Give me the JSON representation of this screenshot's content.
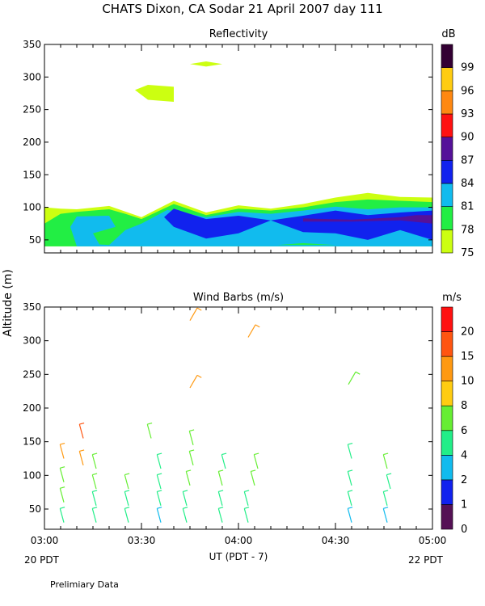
{
  "title": "CHATS Dixon, CA  Sodar  21 April 2007  day 111",
  "ylabel": "Altitude (m)",
  "xlabel": "UT  (PDT - 7)",
  "x_left_note": "20 PDT",
  "x_right_note": "22 PDT",
  "footnote": "Prelimiary Data",
  "colors": {
    "c75": "#ccff11",
    "c78": "#22ee44",
    "c81": "#11bbee",
    "c84": "#1122ee",
    "c87": "#551199",
    "c90": "#ff1111",
    "c93": "#ff8811",
    "c96": "#ffcc11",
    "c99": "#330033"
  },
  "chart_data": [
    {
      "type": "heatmap",
      "title": "Reflectivity",
      "colorbar_unit": "dB",
      "x": [
        "03:00",
        "03:30",
        "04:00",
        "04:30",
        "05:00"
      ],
      "x_minutes": [
        0,
        30,
        60,
        90,
        120
      ],
      "xlim": [
        0,
        120
      ],
      "ylim": [
        30,
        350
      ],
      "yticks": [
        50,
        100,
        150,
        200,
        250,
        300,
        350
      ],
      "levels": [
        75,
        78,
        81,
        84,
        87,
        90,
        93,
        96,
        99
      ],
      "level_colors": [
        "#ccff11",
        "#22ee44",
        "#11bbee",
        "#1122ee",
        "#551199",
        "#ff1111",
        "#ff8811",
        "#ffcc11",
        "#330033"
      ],
      "regions": [
        {
          "level": 75,
          "points": [
            [
              0,
              40
            ],
            [
              0,
              100
            ],
            [
              5,
              98
            ],
            [
              10,
              97
            ],
            [
              20,
              102
            ],
            [
              30,
              85
            ],
            [
              40,
              110
            ],
            [
              50,
              92
            ],
            [
              60,
              103
            ],
            [
              70,
              98
            ],
            [
              80,
              105
            ],
            [
              90,
              115
            ],
            [
              100,
              122
            ],
            [
              110,
              116
            ],
            [
              120,
              115
            ],
            [
              120,
              40
            ]
          ]
        },
        {
          "level": 78,
          "points": [
            [
              0,
              40
            ],
            [
              0,
              75
            ],
            [
              5,
              90
            ],
            [
              10,
              93
            ],
            [
              20,
              97
            ],
            [
              25,
              90
            ],
            [
              30,
              82
            ],
            [
              40,
              105
            ],
            [
              50,
              88
            ],
            [
              60,
              98
            ],
            [
              70,
              95
            ],
            [
              80,
              100
            ],
            [
              90,
              108
            ],
            [
              100,
              112
            ],
            [
              110,
              110
            ],
            [
              120,
              108
            ],
            [
              120,
              40
            ]
          ]
        },
        {
          "level": 81,
          "points": [
            [
              10,
              40
            ],
            [
              8,
              70
            ],
            [
              10,
              86
            ],
            [
              20,
              87
            ],
            [
              22,
              70
            ],
            [
              15,
              60
            ],
            [
              17,
              43
            ],
            [
              20,
              42
            ],
            [
              25,
              65
            ],
            [
              30,
              75
            ],
            [
              38,
              96
            ],
            [
              50,
              85
            ],
            [
              60,
              93
            ],
            [
              70,
              90
            ],
            [
              80,
              95
            ],
            [
              90,
              101
            ],
            [
              100,
              97
            ],
            [
              110,
              100
            ],
            [
              120,
              100
            ],
            [
              120,
              40
            ]
          ]
        },
        {
          "level": 84,
          "points": [
            [
              37,
              85
            ],
            [
              40,
              98
            ],
            [
              50,
              82
            ],
            [
              60,
              87
            ],
            [
              70,
              80
            ],
            [
              80,
              87
            ],
            [
              90,
              95
            ],
            [
              100,
              88
            ],
            [
              110,
              92
            ],
            [
              120,
              95
            ],
            [
              120,
              50
            ],
            [
              110,
              65
            ],
            [
              100,
              50
            ],
            [
              90,
              60
            ],
            [
              80,
              62
            ],
            [
              70,
              80
            ],
            [
              60,
              60
            ],
            [
              50,
              52
            ],
            [
              40,
              70
            ]
          ]
        },
        {
          "level": 87,
          "points": [
            [
              80,
              83
            ],
            [
              95,
              81
            ],
            [
              110,
              85
            ],
            [
              115,
              88
            ],
            [
              120,
              88
            ],
            [
              120,
              75
            ],
            [
              110,
              80
            ],
            [
              95,
              78
            ],
            [
              80,
              78
            ]
          ]
        },
        {
          "level": 78,
          "points": [
            [
              72,
              42
            ],
            [
              80,
              45
            ],
            [
              90,
              42
            ]
          ]
        },
        {
          "level": 75,
          "points": [
            [
              28,
              280
            ],
            [
              32,
              288
            ],
            [
              40,
              285
            ],
            [
              40,
              262
            ],
            [
              32,
              265
            ]
          ]
        },
        {
          "level": 75,
          "points": [
            [
              45,
              320
            ],
            [
              50,
              324
            ],
            [
              55,
              320
            ],
            [
              50,
              316
            ]
          ]
        }
      ]
    },
    {
      "type": "scatter",
      "title": "Wind Barbs (m/s)",
      "colorbar_unit": "m/s",
      "x": [
        "03:00",
        "03:30",
        "04:00",
        "04:30",
        "05:00"
      ],
      "x_minutes": [
        0,
        30,
        60,
        90,
        120
      ],
      "xlim": [
        0,
        120
      ],
      "ylim": [
        20,
        350
      ],
      "yticks": [
        50,
        100,
        150,
        200,
        250,
        300,
        350
      ],
      "levels": [
        0,
        1,
        2,
        4,
        6,
        8,
        10,
        15,
        20
      ],
      "level_colors": [
        "#551155",
        "#1122ee",
        "#11bbee",
        "#22ee88",
        "#66ee33",
        "#ffcc11",
        "#ff9911",
        "#ff5511",
        "#ff1111"
      ],
      "barbs": [
        {
          "t": 6,
          "alt": 30,
          "speed": 5
        },
        {
          "t": 6,
          "alt": 60,
          "speed": 6
        },
        {
          "t": 6,
          "alt": 90,
          "speed": 6
        },
        {
          "t": 6,
          "alt": 125,
          "speed": 11
        },
        {
          "t": 12,
          "alt": 115,
          "speed": 13
        },
        {
          "t": 12,
          "alt": 155,
          "speed": 15
        },
        {
          "t": 16,
          "alt": 30,
          "speed": 4
        },
        {
          "t": 16,
          "alt": 55,
          "speed": 5
        },
        {
          "t": 16,
          "alt": 80,
          "speed": 6
        },
        {
          "t": 16,
          "alt": 110,
          "speed": 6
        },
        {
          "t": 26,
          "alt": 30,
          "speed": 4
        },
        {
          "t": 26,
          "alt": 55,
          "speed": 5
        },
        {
          "t": 26,
          "alt": 80,
          "speed": 6
        },
        {
          "t": 33,
          "alt": 155,
          "speed": 7
        },
        {
          "t": 36,
          "alt": 30,
          "speed": 3
        },
        {
          "t": 36,
          "alt": 55,
          "speed": 4
        },
        {
          "t": 36,
          "alt": 80,
          "speed": 4
        },
        {
          "t": 36,
          "alt": 110,
          "speed": 5
        },
        {
          "t": 44,
          "alt": 30,
          "speed": 4
        },
        {
          "t": 44,
          "alt": 55,
          "speed": 5
        },
        {
          "t": 45,
          "alt": 85,
          "speed": 6
        },
        {
          "t": 46,
          "alt": 115,
          "speed": 6
        },
        {
          "t": 46,
          "alt": 145,
          "speed": 7
        },
        {
          "t": 45,
          "alt": 230,
          "speed": 10
        },
        {
          "t": 45,
          "alt": 330,
          "speed": 12
        },
        {
          "t": 55,
          "alt": 30,
          "speed": 4
        },
        {
          "t": 55,
          "alt": 55,
          "speed": 5
        },
        {
          "t": 55,
          "alt": 85,
          "speed": 6
        },
        {
          "t": 56,
          "alt": 110,
          "speed": 5
        },
        {
          "t": 63,
          "alt": 30,
          "speed": 4
        },
        {
          "t": 63,
          "alt": 55,
          "speed": 5
        },
        {
          "t": 65,
          "alt": 85,
          "speed": 6
        },
        {
          "t": 66,
          "alt": 110,
          "speed": 6
        },
        {
          "t": 63,
          "alt": 305,
          "speed": 12
        },
        {
          "t": 95,
          "alt": 30,
          "speed": 3
        },
        {
          "t": 95,
          "alt": 55,
          "speed": 4
        },
        {
          "t": 95,
          "alt": 85,
          "speed": 5
        },
        {
          "t": 95,
          "alt": 125,
          "speed": 5
        },
        {
          "t": 94,
          "alt": 235,
          "speed": 7
        },
        {
          "t": 106,
          "alt": 30,
          "speed": 3
        },
        {
          "t": 106,
          "alt": 55,
          "speed": 4
        },
        {
          "t": 107,
          "alt": 80,
          "speed": 5
        },
        {
          "t": 106,
          "alt": 110,
          "speed": 6
        }
      ]
    }
  ]
}
